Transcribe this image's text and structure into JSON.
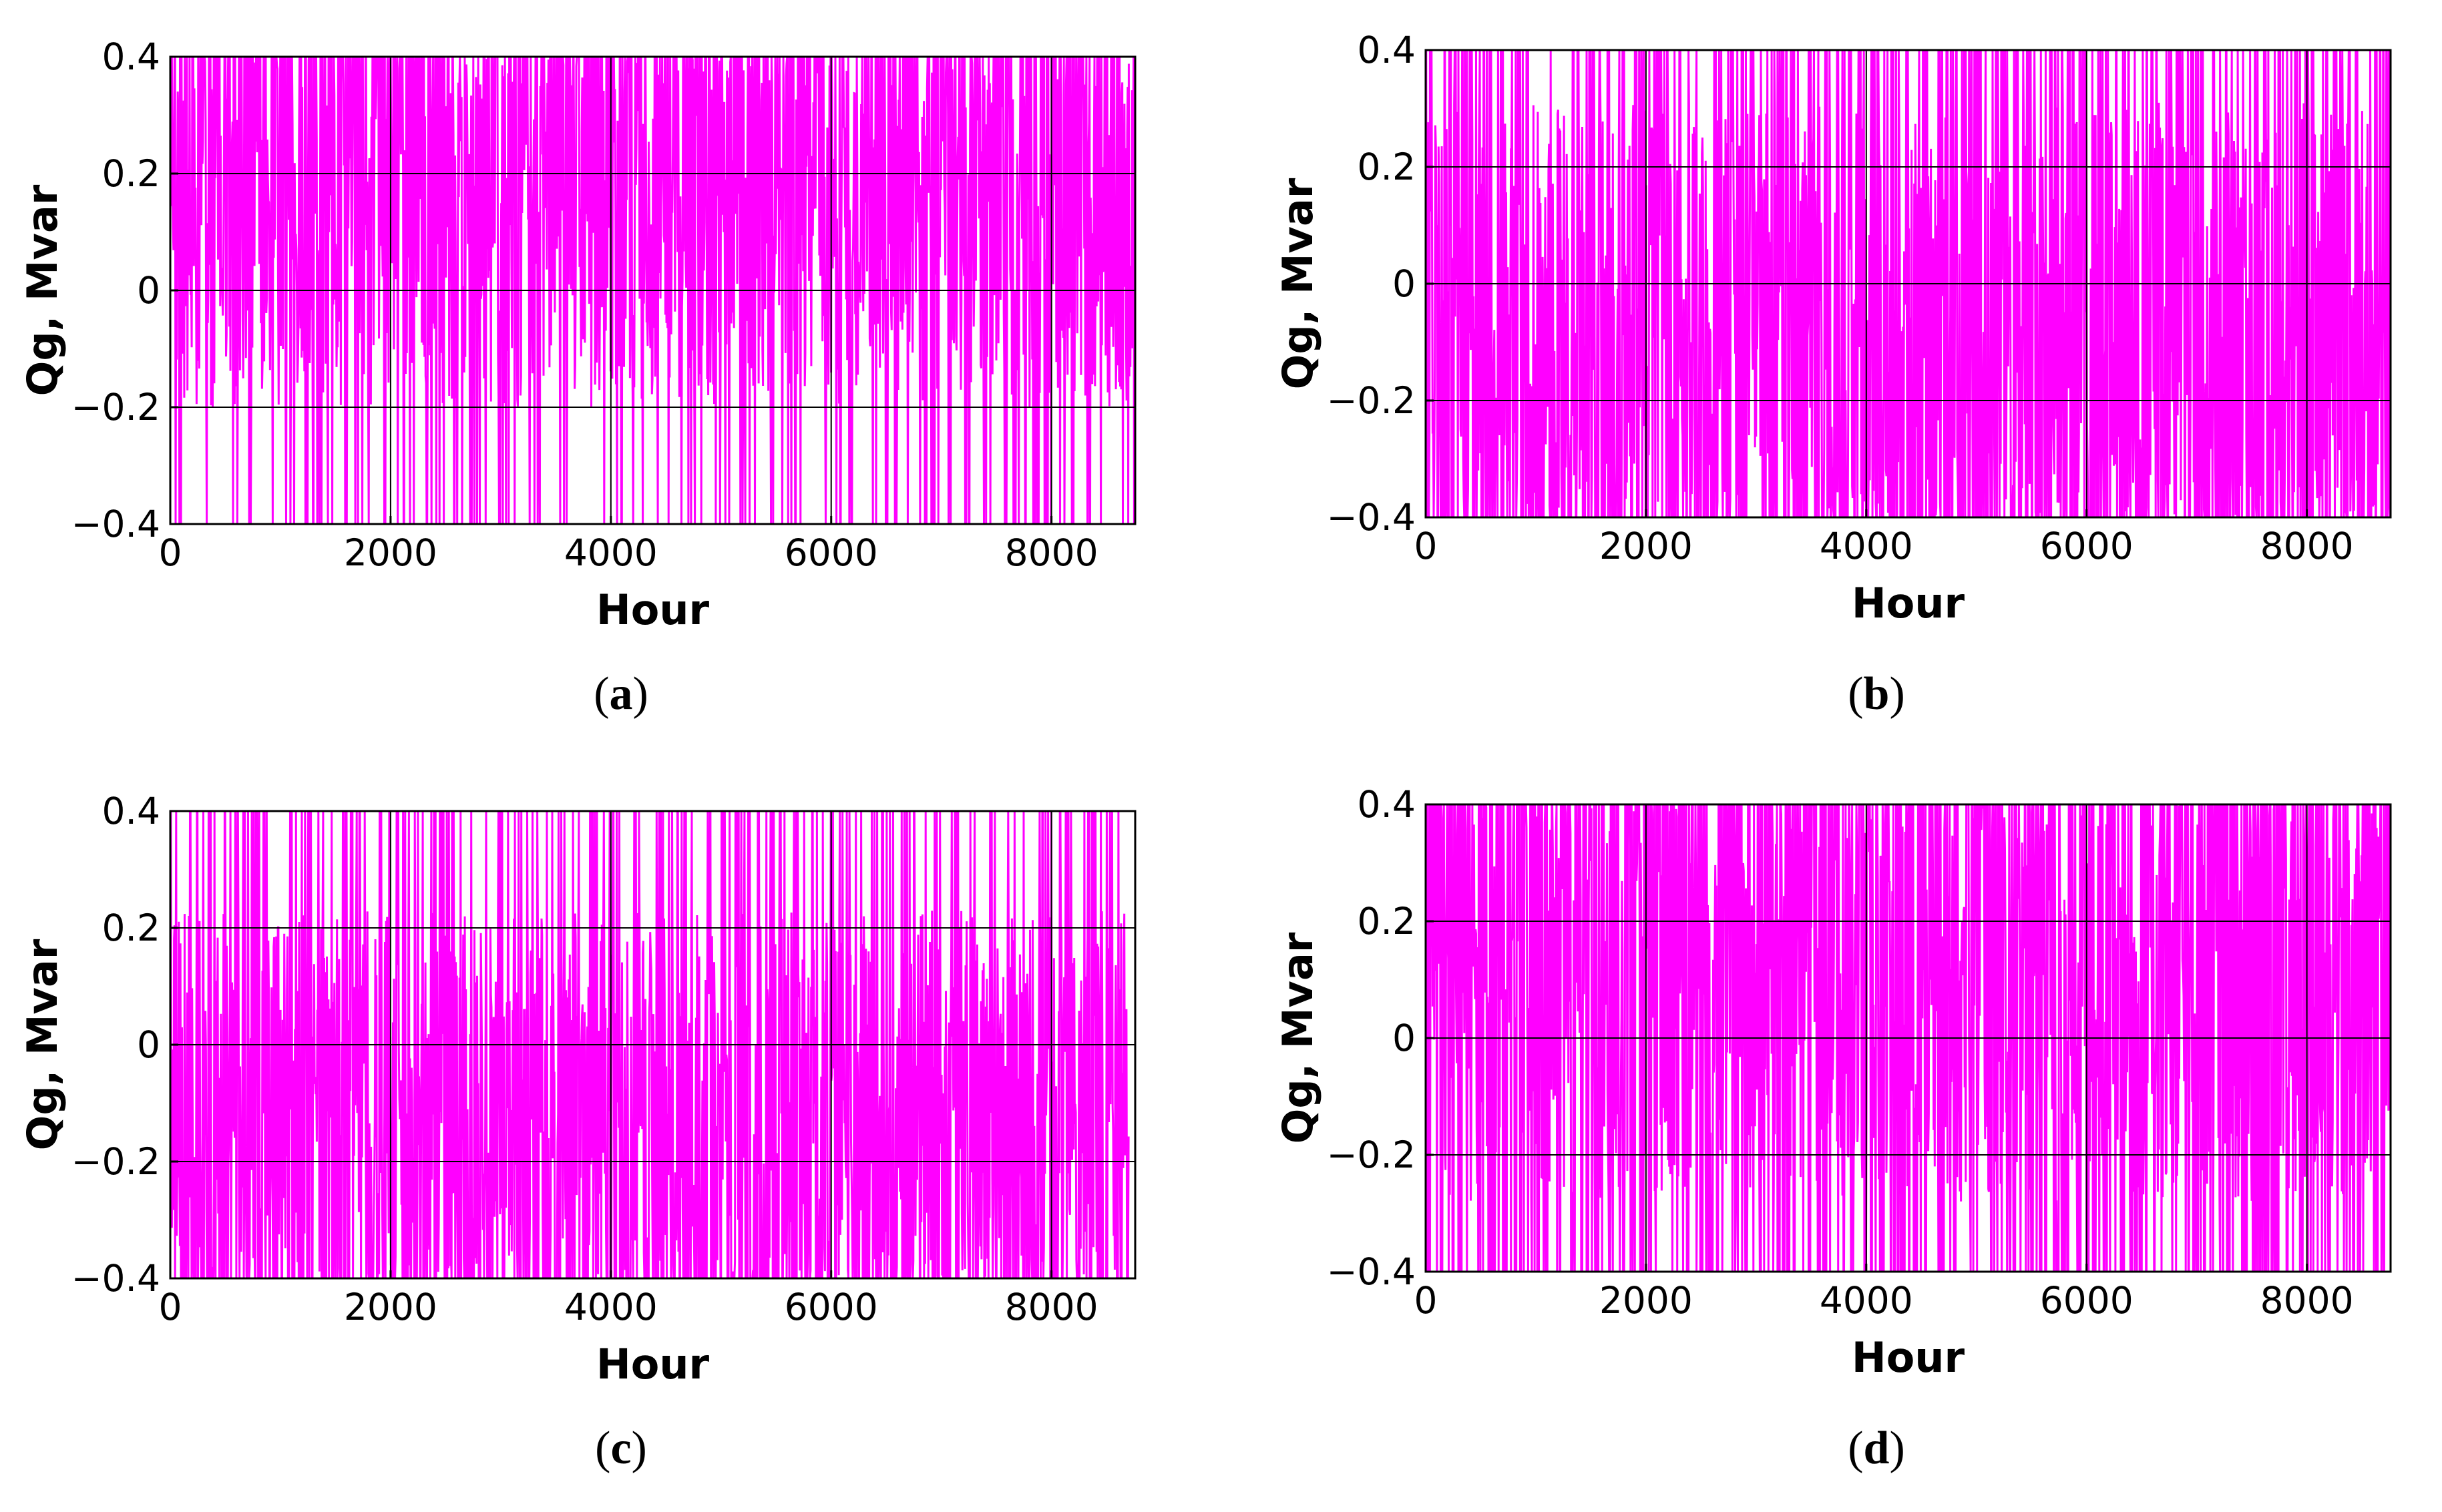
{
  "colors": {
    "series": "#ff00ff",
    "axis": "#000000",
    "grid": "#000000"
  },
  "chart_data": [
    {
      "id": "a",
      "type": "line",
      "caption_letter": "a",
      "xlabel": "Hour",
      "ylabel": "Qg, Mvar",
      "xlim": [
        0,
        8760
      ],
      "ylim": [
        -0.4,
        0.4
      ],
      "x_ticks": [
        0,
        2000,
        4000,
        6000,
        8000
      ],
      "x_tick_labels": [
        "0",
        "2000",
        "4000",
        "6000",
        "8000"
      ],
      "y_ticks": [
        -0.4,
        -0.2,
        0,
        0.2,
        0.4
      ],
      "y_tick_labels": [
        "−0.4",
        "−0.2",
        "0",
        "0.2",
        "0.4"
      ],
      "grid": true,
      "series": [
        {
          "name": "Qg",
          "x_range": [
            0,
            8760
          ],
          "density": 0.85,
          "mean": 0.12,
          "spread": 0.32,
          "clip_high_fraction": 0.45,
          "clip_low_fraction": 0.18,
          "seed": 11
        }
      ]
    },
    {
      "id": "b",
      "type": "line",
      "caption_letter": "b",
      "xlabel": "Hour",
      "ylabel": "Qg, Mvar",
      "xlim": [
        0,
        8760
      ],
      "ylim": [
        -0.4,
        0.4
      ],
      "x_ticks": [
        0,
        2000,
        4000,
        6000,
        8000
      ],
      "x_tick_labels": [
        "0",
        "2000",
        "4000",
        "6000",
        "8000"
      ],
      "y_ticks": [
        -0.4,
        -0.2,
        0,
        0.2,
        0.4
      ],
      "y_tick_labels": [
        "−0.4",
        "−0.2",
        "0",
        "0.2",
        "0.4"
      ],
      "grid": true,
      "series": [
        {
          "name": "Qg",
          "x_range": [
            0,
            8760
          ],
          "density": 0.95,
          "mean": -0.05,
          "spread": 0.36,
          "clip_high_fraction": 0.3,
          "clip_low_fraction": 0.5,
          "seed": 23
        }
      ]
    },
    {
      "id": "c",
      "type": "line",
      "caption_letter": "c",
      "xlabel": "Hour",
      "ylabel": "Qg, Mvar",
      "xlim": [
        0,
        8760
      ],
      "ylim": [
        -0.4,
        0.4
      ],
      "x_ticks": [
        0,
        2000,
        4000,
        6000,
        8000
      ],
      "x_tick_labels": [
        "0",
        "2000",
        "4000",
        "6000",
        "8000"
      ],
      "y_ticks": [
        -0.4,
        -0.2,
        0,
        0.2,
        0.4
      ],
      "y_tick_labels": [
        "−0.4",
        "−0.2",
        "0",
        "0.2",
        "0.4"
      ],
      "grid": true,
      "series": [
        {
          "name": "Qg",
          "x_range": [
            0,
            8700
          ],
          "density": 0.8,
          "mean": -0.1,
          "spread": 0.33,
          "clip_high_fraction": 0.25,
          "clip_low_fraction": 0.45,
          "seed": 37
        }
      ]
    },
    {
      "id": "d",
      "type": "line",
      "caption_letter": "d",
      "xlabel": "Hour",
      "ylabel": "Qg, Mvar",
      "xlim": [
        0,
        8760
      ],
      "ylim": [
        -0.4,
        0.4
      ],
      "x_ticks": [
        0,
        2000,
        4000,
        6000,
        8000
      ],
      "x_tick_labels": [
        "0",
        "2000",
        "4000",
        "6000",
        "8000"
      ],
      "y_ticks": [
        -0.4,
        -0.2,
        0,
        0.2,
        0.4
      ],
      "y_tick_labels": [
        "−0.4",
        "−0.2",
        "0",
        "0.2",
        "0.4"
      ],
      "grid": true,
      "series": [
        {
          "name": "Qg",
          "x_range": [
            0,
            8760
          ],
          "density": 0.9,
          "mean": 0.08,
          "spread": 0.36,
          "clip_high_fraction": 0.5,
          "clip_low_fraction": 0.35,
          "seed": 51
        }
      ]
    }
  ]
}
